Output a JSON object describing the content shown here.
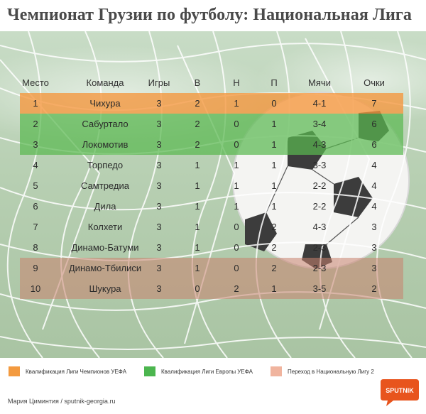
{
  "title": "Чемпионат Грузии по футболу: Национальная Лига",
  "columns": [
    "Место",
    "Команда",
    "Игры",
    "В",
    "Н",
    "П",
    "Мячи",
    "Очки"
  ],
  "rows": [
    {
      "pos": "1",
      "team": "Чихура",
      "games": "3",
      "w": "2",
      "d": "1",
      "l": "0",
      "goals": "4-1",
      "pts": "7",
      "zone": "champ"
    },
    {
      "pos": "2",
      "team": "Сабуртало",
      "games": "3",
      "w": "2",
      "d": "0",
      "l": "1",
      "goals": "3-4",
      "pts": "6",
      "zone": "europa"
    },
    {
      "pos": "3",
      "team": "Локомотив",
      "games": "3",
      "w": "2",
      "d": "0",
      "l": "1",
      "goals": "4-3",
      "pts": "6",
      "zone": "europa"
    },
    {
      "pos": "4",
      "team": "Торпедо",
      "games": "3",
      "w": "1",
      "d": "1",
      "l": "1",
      "goals": "3-3",
      "pts": "4",
      "zone": ""
    },
    {
      "pos": "5",
      "team": "Самтредиа",
      "games": "3",
      "w": "1",
      "d": "1",
      "l": "1",
      "goals": "2-2",
      "pts": "4",
      "zone": ""
    },
    {
      "pos": "6",
      "team": "Дила",
      "games": "3",
      "w": "1",
      "d": "1",
      "l": "1",
      "goals": "2-2",
      "pts": "4",
      "zone": ""
    },
    {
      "pos": "7",
      "team": "Колхети",
      "games": "3",
      "w": "1",
      "d": "0",
      "l": "2",
      "goals": "4-3",
      "pts": "3",
      "zone": ""
    },
    {
      "pos": "8",
      "team": "Динамо-Батуми",
      "games": "3",
      "w": "1",
      "d": "0",
      "l": "2",
      "goals": "2-3",
      "pts": "3",
      "zone": ""
    },
    {
      "pos": "9",
      "team": "Динамо-Тбилиси",
      "games": "3",
      "w": "1",
      "d": "0",
      "l": "2",
      "goals": "2-3",
      "pts": "3",
      "zone": "releg"
    },
    {
      "pos": "10",
      "team": "Шукура",
      "games": "3",
      "w": "0",
      "d": "2",
      "l": "1",
      "goals": "3-5",
      "pts": "2",
      "zone": "releg"
    }
  ],
  "legend": [
    {
      "label": "Квалификация Лиги Чемпионов УЕФА",
      "color": "#f39a3f"
    },
    {
      "label": "Квалификация Лиги Европы УЕФА",
      "color": "#4cb64f"
    },
    {
      "label": "Переход в Национальную Лигу 2",
      "color": "#f0b49e"
    }
  ],
  "credit": "Мария Циминтия / sputnik-georgia.ru",
  "logo_text": "SPUTNIK",
  "logo_color": "#e8541d"
}
